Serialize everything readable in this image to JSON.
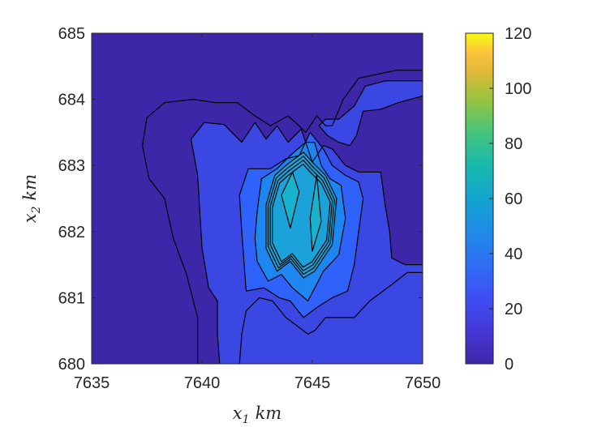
{
  "chart_data": {
    "type": "contour",
    "title": "",
    "xlabel": {
      "base": "x",
      "sub": "1",
      "unit": "km"
    },
    "ylabel": {
      "base": "x",
      "sub": "2",
      "unit": "km"
    },
    "xlim": [
      7635,
      7650
    ],
    "ylim": [
      680,
      685
    ],
    "xticks": [
      "7635",
      "7640",
      "7645",
      "7650"
    ],
    "yticks": [
      "680",
      "681",
      "682",
      "683",
      "684",
      "685"
    ],
    "colorbar": {
      "range": [
        0,
        120
      ],
      "ticks": [
        "0",
        "20",
        "40",
        "60",
        "80",
        "100",
        "120"
      ],
      "colormap": "parula"
    },
    "level_fills": [
      {
        "level": 0,
        "color": "#3E26A8"
      },
      {
        "level": 10,
        "color": "#3A47E2"
      },
      {
        "level": 20,
        "color": "#2F62FA"
      },
      {
        "level": 30,
        "color": "#1E86F0"
      },
      {
        "level": 40,
        "color": "#1BA3D9"
      },
      {
        "level": 50,
        "color": "#18B2CC"
      }
    ],
    "contours": [
      {
        "level": 5,
        "points": [
          [
            7650,
            684.44
          ],
          [
            7648.8,
            684.44
          ],
          [
            7647.1,
            684.32
          ],
          [
            7646.4,
            684.0
          ],
          [
            7645.9,
            683.6
          ],
          [
            7645.6,
            683.6
          ],
          [
            7645.2,
            683.75
          ],
          [
            7644.7,
            683.5
          ],
          [
            7644.4,
            683.6
          ],
          [
            7643.9,
            683.75
          ],
          [
            7643.1,
            683.6
          ],
          [
            7642.4,
            683.75
          ],
          [
            7641.6,
            683.95
          ],
          [
            7640.6,
            683.95
          ],
          [
            7639.6,
            684.0
          ],
          [
            7638.3,
            683.95
          ],
          [
            7637.5,
            683.72
          ],
          [
            7637.3,
            683.3
          ],
          [
            7637.6,
            682.8
          ],
          [
            7638.3,
            682.5
          ],
          [
            7638.7,
            681.9
          ],
          [
            7639.3,
            681.35
          ],
          [
            7639.8,
            680.7
          ],
          [
            7639.8,
            680.0
          ]
        ]
      },
      {
        "level": 10,
        "points": [
          [
            7650,
            681.38
          ],
          [
            7649.3,
            681.38
          ],
          [
            7648.6,
            681.2
          ],
          [
            7647.6,
            680.95
          ],
          [
            7646.9,
            680.7
          ],
          [
            7646.2,
            680.7
          ],
          [
            7645.6,
            680.7
          ],
          [
            7645.1,
            680.5
          ],
          [
            7644.8,
            680.45
          ],
          [
            7644.4,
            680.55
          ],
          [
            7643.8,
            680.7
          ],
          [
            7643.2,
            680.95
          ],
          [
            7642.6,
            681.0
          ],
          [
            7642.0,
            680.8
          ],
          [
            7641.8,
            680.45
          ],
          [
            7641.7,
            680.0
          ]
        ]
      },
      {
        "level": 10,
        "points": [
          [
            7640.8,
            680.0
          ],
          [
            7640.7,
            680.45
          ],
          [
            7640.7,
            680.95
          ],
          [
            7640.3,
            681.15
          ],
          [
            7640.0,
            681.75
          ],
          [
            7639.9,
            682.3
          ],
          [
            7639.8,
            682.85
          ],
          [
            7639.5,
            683.4
          ],
          [
            7640.1,
            683.65
          ],
          [
            7641.0,
            683.62
          ],
          [
            7641.8,
            683.35
          ],
          [
            7642.4,
            683.65
          ],
          [
            7642.9,
            683.4
          ],
          [
            7643.4,
            683.6
          ],
          [
            7643.9,
            683.35
          ],
          [
            7644.5,
            683.55
          ],
          [
            7645.0,
            683.05
          ],
          [
            7645.5,
            683.3
          ],
          [
            7645.9,
            683.25
          ],
          [
            7646.5,
            683.0
          ],
          [
            7647.1,
            682.9
          ],
          [
            7648.1,
            682.9
          ],
          [
            7648.3,
            682.4
          ],
          [
            7648.5,
            682.0
          ],
          [
            7648.6,
            681.6
          ],
          [
            7649.2,
            681.5
          ],
          [
            7650,
            681.5
          ]
        ]
      },
      {
        "level": 10,
        "points": [
          [
            7650,
            684.05
          ],
          [
            7648.9,
            683.95
          ],
          [
            7648.1,
            683.85
          ],
          [
            7647.3,
            683.82
          ],
          [
            7647.0,
            683.45
          ],
          [
            7646.7,
            683.3
          ],
          [
            7646.2,
            683.35
          ],
          [
            7645.7,
            683.45
          ],
          [
            7645.3,
            683.6
          ],
          [
            7645.6,
            683.7
          ],
          [
            7646.2,
            683.7
          ],
          [
            7646.9,
            683.9
          ],
          [
            7647.4,
            684.2
          ],
          [
            7648.3,
            684.28
          ],
          [
            7649.4,
            684.28
          ],
          [
            7650,
            684.28
          ]
        ]
      },
      {
        "level": 20,
        "points": [
          [
            7642.0,
            681.1
          ],
          [
            7642.8,
            681.15
          ],
          [
            7643.5,
            681.0
          ],
          [
            7644.0,
            680.95
          ],
          [
            7644.6,
            680.7
          ],
          [
            7645.2,
            680.85
          ],
          [
            7645.9,
            681.0
          ],
          [
            7646.6,
            681.1
          ],
          [
            7646.9,
            681.5
          ],
          [
            7647.1,
            682.0
          ],
          [
            7647.3,
            682.5
          ],
          [
            7647.1,
            682.75
          ],
          [
            7646.5,
            682.85
          ],
          [
            7645.9,
            683.0
          ],
          [
            7645.5,
            683.25
          ],
          [
            7644.9,
            683.5
          ],
          [
            7644.4,
            683.15
          ],
          [
            7643.8,
            683.1
          ],
          [
            7643.1,
            682.95
          ],
          [
            7642.1,
            682.95
          ],
          [
            7641.7,
            682.55
          ],
          [
            7641.8,
            682.0
          ],
          [
            7641.9,
            681.55
          ],
          [
            7642.0,
            681.1
          ]
        ]
      },
      {
        "level": 30,
        "points": [
          [
            7642.5,
            681.55
          ],
          [
            7643.0,
            681.25
          ],
          [
            7643.6,
            681.35
          ],
          [
            7644.1,
            681.15
          ],
          [
            7644.8,
            680.95
          ],
          [
            7645.5,
            681.4
          ],
          [
            7646.2,
            681.65
          ],
          [
            7646.5,
            682.2
          ],
          [
            7646.3,
            682.7
          ],
          [
            7645.8,
            682.8
          ],
          [
            7645.4,
            683.0
          ],
          [
            7645.1,
            683.35
          ],
          [
            7644.7,
            683.35
          ],
          [
            7644.0,
            683.15
          ],
          [
            7643.4,
            682.95
          ],
          [
            7642.7,
            682.8
          ],
          [
            7642.5,
            682.3
          ],
          [
            7642.4,
            681.9
          ],
          [
            7642.5,
            681.55
          ]
        ]
      },
      {
        "level": 40,
        "points": [
          [
            7642.9,
            681.75
          ],
          [
            7643.4,
            681.4
          ],
          [
            7644.0,
            681.55
          ],
          [
            7644.6,
            681.3
          ],
          [
            7645.1,
            681.4
          ],
          [
            7645.9,
            681.8
          ],
          [
            7646.1,
            682.5
          ],
          [
            7645.6,
            682.85
          ],
          [
            7645.0,
            683.05
          ],
          [
            7644.6,
            683.2
          ],
          [
            7643.8,
            683.0
          ],
          [
            7643.3,
            682.85
          ],
          [
            7642.9,
            682.4
          ],
          [
            7642.9,
            681.75
          ]
        ]
      },
      {
        "level": 50,
        "points": [
          [
            7643.6,
            682.55
          ],
          [
            7644.0,
            682.05
          ],
          [
            7644.4,
            682.6
          ],
          [
            7644.1,
            682.9
          ],
          [
            7643.6,
            682.55
          ]
        ]
      },
      {
        "level": 50,
        "points": [
          [
            7645.0,
            681.7
          ],
          [
            7645.4,
            682.15
          ],
          [
            7645.2,
            682.85
          ],
          [
            7644.9,
            682.2
          ],
          [
            7645.0,
            681.7
          ]
        ]
      }
    ]
  }
}
